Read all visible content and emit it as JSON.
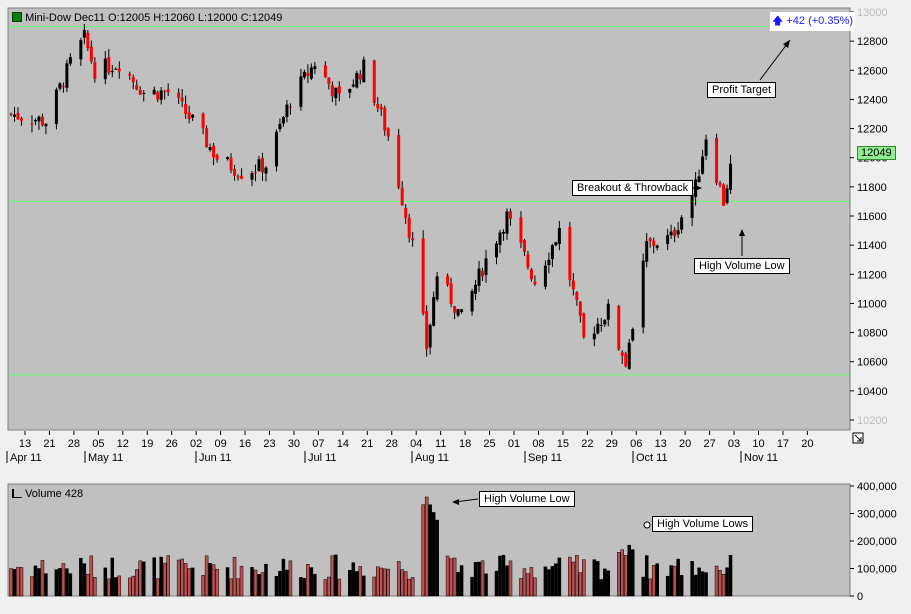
{
  "header": {
    "symbol": "Mini-Dow Dec11",
    "ohlc": "O:12005 H:12060 L:12000 C:12049",
    "change": "+42 (+0.35%)",
    "last_price": "12049"
  },
  "volume_header": {
    "label": "Volume 428"
  },
  "callouts": {
    "profit_target": "Profit Target",
    "breakout": "Breakout & Throwback",
    "hv_low_price": "High Volume Low",
    "hv_low_vol": "High Volume Low",
    "hv_lows_vol": "High Volume Lows"
  },
  "price_axis": {
    "ticks": [
      "13000",
      "12800",
      "12600",
      "12400",
      "12200",
      "12000",
      "11800",
      "11600",
      "11400",
      "11200",
      "11000",
      "10800",
      "10600",
      "10400",
      "10200"
    ]
  },
  "volume_axis": {
    "ticks": [
      "400,000",
      "300,000",
      "200,000",
      "100,000",
      "0"
    ]
  },
  "x_axis": {
    "day_ticks": [
      "13",
      "21",
      "28",
      "05",
      "12",
      "19",
      "26",
      "02",
      "09",
      "16",
      "23",
      "30",
      "07",
      "14",
      "21",
      "28",
      "04",
      "11",
      "18",
      "25",
      "01",
      "08",
      "15",
      "22",
      "29",
      "06",
      "13",
      "20",
      "27",
      "03",
      "10",
      "17",
      "20"
    ],
    "month_labels": [
      "Apr 11",
      "May 11",
      "Jun 11",
      "Jul 11",
      "Aug 11",
      "Sep 11",
      "Oct 11",
      "Nov 11"
    ]
  },
  "colors": {
    "plot_bg": "#c0c0c0",
    "up": "#000000",
    "down": "#ff0000",
    "level_line": "#66ff66",
    "axis_text": "#000000"
  },
  "chart_data": [
    {
      "type": "candlestick",
      "title": "Mini-Dow Dec11",
      "ylim": [
        10200,
        13000
      ],
      "horizontal_levels": [
        12900,
        11700,
        10510
      ],
      "annotations": [
        "Profit Target",
        "Breakout & Throwback",
        "High Volume Low"
      ],
      "close_path": [
        {
          "x": "Apr 11",
          "y": 12300
        },
        {
          "x": "Apr 21",
          "y": 12250
        },
        {
          "x": "Apr 28",
          "y": 12650
        },
        {
          "x": "May 02",
          "y": 12820
        },
        {
          "x": "May 05",
          "y": 12600
        },
        {
          "x": "May 12",
          "y": 12650
        },
        {
          "x": "May 19",
          "y": 12450
        },
        {
          "x": "May 26",
          "y": 12450
        },
        {
          "x": "Jun 02",
          "y": 12250
        },
        {
          "x": "Jun 09",
          "y": 12000
        },
        {
          "x": "Jun 16",
          "y": 11900
        },
        {
          "x": "Jun 23",
          "y": 11950
        },
        {
          "x": "Jun 30",
          "y": 12400
        },
        {
          "x": "Jul 07",
          "y": 12650
        },
        {
          "x": "Jul 14",
          "y": 12400
        },
        {
          "x": "Jul 21",
          "y": 12620
        },
        {
          "x": "Jul 28",
          "y": 12150
        },
        {
          "x": "Aug 04",
          "y": 11400
        },
        {
          "x": "Aug 08",
          "y": 10700
        },
        {
          "x": "Aug 11",
          "y": 11200
        },
        {
          "x": "Aug 18",
          "y": 10900
        },
        {
          "x": "Aug 25",
          "y": 11300
        },
        {
          "x": "Aug 31",
          "y": 11600
        },
        {
          "x": "Sep 08",
          "y": 11150
        },
        {
          "x": "Sep 15",
          "y": 11500
        },
        {
          "x": "Sep 22",
          "y": 10750
        },
        {
          "x": "Sep 29",
          "y": 10950
        },
        {
          "x": "Oct 04",
          "y": 10550
        },
        {
          "x": "Oct 10",
          "y": 11400
        },
        {
          "x": "Oct 17",
          "y": 11450
        },
        {
          "x": "Oct 24",
          "y": 11800
        },
        {
          "x": "Oct 27",
          "y": 12150
        },
        {
          "x": "Nov 01",
          "y": 11700
        },
        {
          "x": "Nov 04",
          "y": 12049
        }
      ]
    },
    {
      "type": "bar",
      "title": "Volume 428",
      "ylim": [
        0,
        400000
      ],
      "annotations": [
        "High Volume Low",
        "High Volume Lows"
      ],
      "peaks": [
        {
          "x": "Aug 08",
          "y": 360000
        },
        {
          "x": "Oct 04",
          "y": 210000
        }
      ]
    }
  ]
}
